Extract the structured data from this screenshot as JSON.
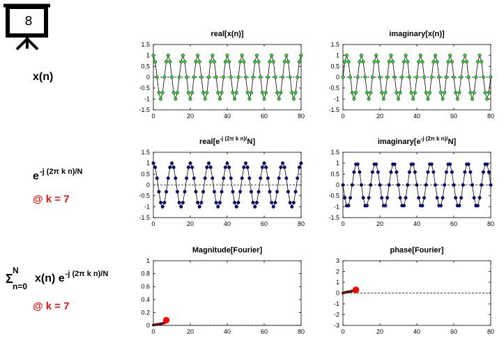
{
  "slide": {
    "number": "8"
  },
  "rows": {
    "signal": {
      "label": "x(n)"
    },
    "kernel": {
      "base": "e",
      "exp": "-j (2π k n)/N",
      "k_label": "@ k = 7"
    },
    "sum": {
      "sigma": "Σ",
      "upper": "N",
      "lower": "n=0",
      "body": "x(n) e",
      "exp": "-j (2π k n)/N",
      "k_label": "@ k = 7"
    }
  },
  "colors": {
    "signal": "#33cc33",
    "kernel": "#0a0a80",
    "fourier": "#ff0000",
    "line": "#000000"
  },
  "chart_data": [
    {
      "type": "line",
      "title": "real[x(n)]",
      "xlim": [
        0,
        80
      ],
      "ylim": [
        -1.5,
        1.5
      ],
      "xticks": [
        0,
        20,
        40,
        60,
        80
      ],
      "yticks": [
        1.5,
        1,
        0.5,
        0,
        -0.5,
        -1,
        -1.5
      ],
      "xticklabels": [
        "0",
        "20",
        "40",
        "60",
        "80"
      ],
      "yticklabels": [
        "1.5",
        "1",
        "0.5",
        "0",
        "-0.5",
        "-1",
        "-1.5"
      ],
      "series": [
        {
          "x": [
            0,
            1,
            2,
            3,
            4,
            5,
            6,
            7,
            8,
            9,
            10,
            11,
            12,
            13,
            14,
            15,
            16,
            17,
            18,
            19,
            20,
            21,
            22,
            23,
            24,
            25,
            26,
            27,
            28,
            29,
            30,
            31,
            32,
            33,
            34,
            35,
            36,
            37,
            38,
            39,
            40,
            41,
            42,
            43,
            44,
            45,
            46,
            47,
            48,
            49,
            50,
            51,
            52,
            53,
            54,
            55,
            56,
            57,
            58,
            59,
            60,
            61,
            62,
            63,
            64,
            65,
            66,
            67,
            68,
            69,
            70,
            71,
            72,
            73,
            74,
            75,
            76,
            77,
            78,
            79,
            80
          ],
          "y": [
            1.0,
            0.7,
            0.0,
            -0.71,
            -1.0,
            -0.71,
            0.0,
            0.71,
            1.0,
            0.71,
            0.0,
            -0.71,
            -1.0,
            -0.71,
            0.0,
            0.71,
            1.0,
            0.71,
            0.0,
            -0.71,
            -1.0,
            -0.71,
            0.0,
            0.71,
            1.0,
            0.71,
            0.0,
            -0.71,
            -1.0,
            -0.71,
            0.0,
            0.71,
            1.0,
            0.71,
            0.0,
            -0.71,
            -1.0,
            -0.71,
            0.0,
            0.71,
            1.0,
            0.71,
            0.0,
            -0.71,
            -1.0,
            -0.71,
            0.0,
            0.71,
            1.0,
            0.71,
            0.0,
            -0.71,
            -1.0,
            -0.71,
            0.0,
            0.71,
            1.0,
            0.71,
            0.0,
            -0.71,
            -1.0,
            -0.71,
            0.0,
            0.71,
            1.0,
            0.71,
            0.0,
            -0.71,
            -1.0,
            -0.71,
            0.0,
            0.71,
            1.0,
            0.71,
            0.0,
            -0.71,
            -1.0,
            -0.71,
            0.0,
            0.71,
            1.0
          ]
        }
      ]
    },
    {
      "type": "line",
      "title": "imaginary[x(n)]",
      "xlim": [
        0,
        80
      ],
      "ylim": [
        -1.5,
        1.5
      ],
      "xticks": [
        0,
        20,
        40,
        60,
        80
      ],
      "yticks": [
        1.5,
        1,
        0.5,
        0,
        -0.5,
        -1,
        -1.5
      ],
      "xticklabels": [
        "0",
        "20",
        "40",
        "60",
        "80"
      ],
      "yticklabels": [
        "1.5",
        "1",
        "0.5",
        "0",
        "-0.5",
        "-1",
        "-1.5"
      ],
      "series": [
        {
          "x": [
            0,
            1,
            2,
            3,
            4,
            5,
            6,
            7,
            8,
            9,
            10,
            11,
            12,
            13,
            14,
            15,
            16,
            17,
            18,
            19,
            20,
            21,
            22,
            23,
            24,
            25,
            26,
            27,
            28,
            29,
            30,
            31,
            32,
            33,
            34,
            35,
            36,
            37,
            38,
            39,
            40,
            41,
            42,
            43,
            44,
            45,
            46,
            47,
            48,
            49,
            50,
            51,
            52,
            53,
            54,
            55,
            56,
            57,
            58,
            59,
            60,
            61,
            62,
            63,
            64,
            65,
            66,
            67,
            68,
            69,
            70,
            71,
            72,
            73,
            74,
            75,
            76,
            77,
            78,
            79,
            80
          ],
          "y": [
            0.0,
            0.71,
            1.0,
            0.71,
            0.0,
            -0.71,
            -1.0,
            -0.71,
            0.0,
            0.71,
            1.0,
            0.71,
            0.0,
            -0.71,
            -1.0,
            -0.71,
            0.0,
            0.71,
            1.0,
            0.71,
            0.0,
            -0.71,
            -1.0,
            -0.71,
            0.0,
            0.71,
            1.0,
            0.71,
            0.0,
            -0.71,
            -1.0,
            -0.71,
            0.0,
            0.71,
            1.0,
            0.71,
            0.0,
            -0.71,
            -1.0,
            -0.71,
            0.0,
            0.71,
            1.0,
            0.71,
            0.0,
            -0.71,
            -1.0,
            -0.71,
            0.0,
            0.71,
            1.0,
            0.71,
            0.0,
            -0.71,
            -1.0,
            -0.71,
            0.0,
            0.71,
            1.0,
            0.71,
            0.0,
            -0.71,
            -1.0,
            -0.71,
            0.0,
            0.71,
            1.0,
            0.71,
            0.0,
            -0.71,
            -1.0,
            -0.71,
            0.0,
            0.71,
            1.0,
            0.71,
            0.0,
            -0.71,
            -1.0,
            -0.71,
            0.0
          ]
        }
      ]
    },
    {
      "type": "line",
      "title": "real[e-j (2π k n)/N]",
      "title_parts": {
        "pre": "real[e",
        "sup": "-j (2π k n)/",
        "post": "N]"
      },
      "xlim": [
        0,
        80
      ],
      "ylim": [
        -1.5,
        1.5
      ],
      "xticks": [
        0,
        20,
        40,
        60,
        80
      ],
      "yticks": [
        1.5,
        1,
        0.5,
        0,
        -0.5,
        -1,
        -1.5
      ],
      "xticklabels": [
        "0",
        "20",
        "40",
        "60",
        "80"
      ],
      "yticklabels": [
        "1.5",
        "1",
        "0.5",
        "0",
        "-0.5",
        "-1",
        "-1.5"
      ],
      "series": [
        {
          "x": [
            0,
            1,
            2,
            3,
            4,
            5,
            6,
            7,
            8,
            9,
            10,
            11,
            12,
            13,
            14,
            15,
            16,
            17,
            18,
            19,
            20,
            21,
            22,
            23,
            24,
            25,
            26,
            27,
            28,
            29,
            30,
            31,
            32,
            33,
            34,
            35,
            36,
            37,
            38,
            39,
            40,
            41,
            42,
            43,
            44,
            45,
            46,
            47,
            48,
            49,
            50,
            51,
            52,
            53,
            54,
            55,
            56,
            57,
            58,
            59,
            60,
            61,
            62,
            63,
            64,
            65,
            66,
            67,
            68,
            69,
            70,
            71,
            72,
            73,
            74,
            75,
            76,
            77,
            78,
            79,
            80
          ],
          "y": [
            1.0,
            0.81,
            0.31,
            -0.31,
            -0.81,
            -1.0,
            -0.81,
            -0.31,
            0.31,
            0.81,
            1.0,
            0.81,
            0.31,
            -0.31,
            -0.81,
            -1.0,
            -0.81,
            -0.31,
            0.31,
            0.81,
            1.0,
            0.81,
            0.31,
            -0.31,
            -0.81,
            -1.0,
            -0.81,
            -0.31,
            0.31,
            0.81,
            1.0,
            0.81,
            0.31,
            -0.31,
            -0.81,
            -1.0,
            -0.81,
            -0.31,
            0.31,
            0.81,
            1.0,
            0.81,
            0.31,
            -0.31,
            -0.81,
            -1.0,
            -0.81,
            -0.31,
            0.31,
            0.81,
            1.0,
            0.81,
            0.31,
            -0.31,
            -0.81,
            -1.0,
            -0.81,
            -0.31,
            0.31,
            0.81,
            1.0,
            0.81,
            0.31,
            -0.31,
            -0.81,
            -1.0,
            -0.81,
            -0.31,
            0.31,
            0.81,
            1.0,
            0.81,
            0.31,
            -0.31,
            -0.81,
            -1.0,
            -0.81,
            -0.31,
            0.31,
            0.81,
            1.0
          ]
        }
      ]
    },
    {
      "type": "line",
      "title": "imaginary[e-j (2π k n)/N]",
      "title_parts": {
        "pre": "imaginary[e",
        "sup": "-j (2π k n)/",
        "post": "N]"
      },
      "xlim": [
        0,
        80
      ],
      "ylim": [
        -1.5,
        1.5
      ],
      "xticks": [
        0,
        20,
        40,
        60,
        80
      ],
      "yticks": [
        1.5,
        1,
        0.5,
        0,
        -0.5,
        -1,
        -1.5
      ],
      "xticklabels": [
        "0",
        "20",
        "40",
        "60",
        "80"
      ],
      "yticklabels": [
        "1.5",
        "1",
        "0.5",
        "0",
        "-0.5",
        "-1",
        "-1.5"
      ],
      "series": [
        {
          "x": [
            0,
            1,
            2,
            3,
            4,
            5,
            6,
            7,
            8,
            9,
            10,
            11,
            12,
            13,
            14,
            15,
            16,
            17,
            18,
            19,
            20,
            21,
            22,
            23,
            24,
            25,
            26,
            27,
            28,
            29,
            30,
            31,
            32,
            33,
            34,
            35,
            36,
            37,
            38,
            39,
            40,
            41,
            42,
            43,
            44,
            45,
            46,
            47,
            48,
            49,
            50,
            51,
            52,
            53,
            54,
            55,
            56,
            57,
            58,
            59,
            60,
            61,
            62,
            63,
            64,
            65,
            66,
            67,
            68,
            69,
            70,
            71,
            72,
            73,
            74,
            75,
            76,
            77,
            78,
            79,
            80
          ],
          "y": [
            0.0,
            -0.59,
            -0.95,
            -0.95,
            -0.59,
            0.0,
            0.59,
            0.95,
            0.95,
            0.59,
            0.0,
            -0.59,
            -0.95,
            -0.95,
            -0.59,
            0.0,
            0.59,
            0.95,
            0.95,
            0.59,
            0.0,
            -0.59,
            -0.95,
            -0.95,
            -0.59,
            0.0,
            0.59,
            0.95,
            0.95,
            0.59,
            0.0,
            -0.59,
            -0.95,
            -0.95,
            -0.59,
            0.0,
            0.59,
            0.95,
            0.95,
            0.59,
            0.0,
            -0.59,
            -0.95,
            -0.95,
            -0.59,
            0.0,
            0.59,
            0.95,
            0.95,
            0.59,
            0.0,
            -0.59,
            -0.95,
            -0.95,
            -0.59,
            0.0,
            0.59,
            0.95,
            0.95,
            0.59,
            0.0,
            -0.59,
            -0.95,
            -0.95,
            -0.59,
            0.0,
            0.59,
            0.95,
            0.95,
            0.59,
            0.0,
            -0.59,
            -0.95,
            -0.95,
            -0.59,
            0.0,
            0.59,
            0.95,
            0.95,
            0.59,
            0.0
          ]
        }
      ]
    },
    {
      "type": "scatter",
      "title": "Magnitude[Fourier]",
      "xlim": [
        0,
        80
      ],
      "ylim": [
        0,
        1
      ],
      "xticks": [
        0,
        20,
        40,
        60,
        80
      ],
      "yticks": [
        1,
        0.8,
        0.6,
        0.4,
        0.2,
        0
      ],
      "xticklabels": [
        "0",
        "20",
        "40",
        "60",
        "80"
      ],
      "yticklabels": [
        "1",
        "0.8",
        "0.6",
        "0.4",
        "0.2",
        "0"
      ],
      "baseline": 0,
      "series": [
        {
          "x": [
            0,
            1,
            2,
            3,
            4,
            5,
            6,
            7
          ],
          "y": [
            0.005,
            0.01,
            0.015,
            0.02,
            0.025,
            0.03,
            0.04,
            0.08
          ],
          "highlight_last": true
        }
      ]
    },
    {
      "type": "scatter",
      "title": "phase[Fourier]",
      "xlim": [
        0,
        80
      ],
      "ylim": [
        -3,
        3
      ],
      "xticks": [
        0,
        20,
        40,
        60,
        80
      ],
      "yticks": [
        3,
        2,
        1,
        0,
        -1,
        -2,
        -3
      ],
      "xticklabels": [
        "0",
        "20",
        "40",
        "60",
        "80"
      ],
      "yticklabels": [
        "3",
        "2",
        "1",
        "0",
        "-1",
        "-2",
        "-3"
      ],
      "series": [
        {
          "x": [
            0,
            1,
            2,
            3,
            4,
            5,
            6,
            7
          ],
          "y": [
            0.0,
            0.05,
            0.1,
            0.12,
            0.15,
            0.2,
            0.22,
            0.3
          ],
          "highlight_last": true
        }
      ]
    }
  ]
}
